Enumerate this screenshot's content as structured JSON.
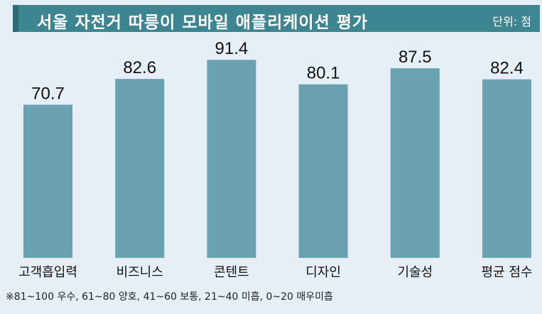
{
  "header": {
    "title": "서울 자전거 따릉이 모바일 애플리케이션 평가",
    "unit": "단위: 점"
  },
  "footnote": "※81~100 우수, 61~80 양호, 41~60 보통, 21~40 미흡, 0~20 매우미흡",
  "colors": {
    "bar": "#6aa2b2",
    "title_bg": "#3d8591",
    "background": "#e6eef6"
  },
  "chart_data": {
    "type": "bar",
    "categories": [
      "고객흡입력",
      "비즈니스",
      "콘텐트",
      "디자인",
      "기술성",
      "평균 점수"
    ],
    "values": [
      70.7,
      82.6,
      91.4,
      80.1,
      87.5,
      82.4
    ],
    "value_labels": [
      "70.7",
      "82.6",
      "91.4",
      "80.1",
      "87.5",
      "82.4"
    ],
    "title": "서울 자전거 따릉이 모바일 애플리케이션 평가",
    "xlabel": "",
    "ylabel": "",
    "ylim": [
      0,
      100
    ],
    "grid": false,
    "legend": "none"
  }
}
